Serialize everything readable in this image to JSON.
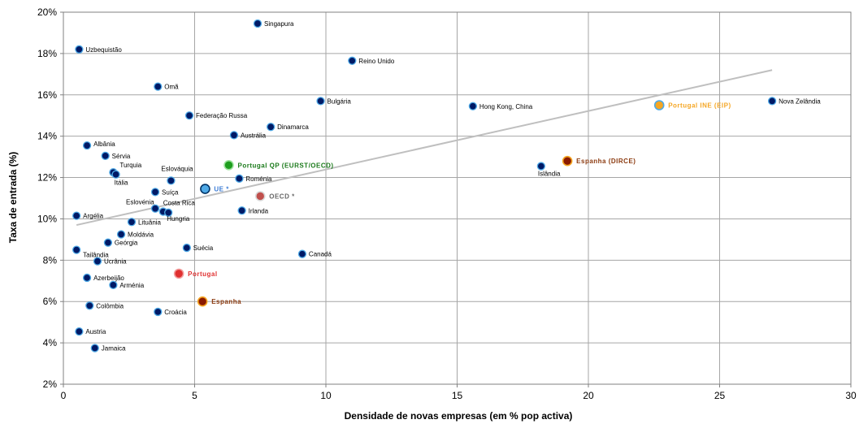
{
  "chart_data": {
    "type": "scatter",
    "title": "",
    "xlabel": "Densidade de novas empresas (em % pop activa)",
    "ylabel": "Taxa de entrada (%)",
    "xlim": [
      0,
      30
    ],
    "ylim": [
      2,
      20
    ],
    "x_ticks": [
      "0",
      "5",
      "10",
      "15",
      "20",
      "25",
      "30"
    ],
    "y_ticks": [
      "2%",
      "4%",
      "6%",
      "8%",
      "10%",
      "12%",
      "14%",
      "16%",
      "18%",
      "20%"
    ],
    "grid": true,
    "colors": {
      "default_point": "#001a66",
      "default_ring": "#4ea9e6",
      "trend": "#bfbfbf",
      "grid": "#a6a6a6",
      "axis": "#808080"
    },
    "trendline": {
      "x": [
        0.5,
        27
      ],
      "y": [
        9.7,
        17.2
      ]
    },
    "points": [
      {
        "label": "Singapura",
        "x": 7.4,
        "y": 19.45
      },
      {
        "label": "Uzbequistão",
        "x": 0.6,
        "y": 18.2
      },
      {
        "label": "Reino Unido",
        "x": 11.0,
        "y": 17.65
      },
      {
        "label": "Omã",
        "x": 3.6,
        "y": 16.4
      },
      {
        "label": "Bulgária",
        "x": 9.8,
        "y": 15.7
      },
      {
        "label": "Hong Kong, China",
        "x": 15.6,
        "y": 15.45
      },
      {
        "label": "Nova Zelândia",
        "x": 27.0,
        "y": 15.7
      },
      {
        "label": "Federação Russa",
        "x": 4.8,
        "y": 15.0
      },
      {
        "label": "Dinamarca",
        "x": 7.9,
        "y": 14.45
      },
      {
        "label": "Austrália",
        "x": 6.5,
        "y": 14.05
      },
      {
        "label": "Albânia",
        "x": 0.9,
        "y": 13.55
      },
      {
        "label": "Sérvia",
        "x": 1.6,
        "y": 13.05
      },
      {
        "label": "Turquia",
        "x": 1.9,
        "y": 12.25
      },
      {
        "label": "Itália",
        "x": 2.0,
        "y": 12.15
      },
      {
        "label": "Eslováquia",
        "x": 4.1,
        "y": 11.85
      },
      {
        "label": "Roménia",
        "x": 6.7,
        "y": 11.95
      },
      {
        "label": "Islândia",
        "x": 18.2,
        "y": 12.55
      },
      {
        "label": "Suíça",
        "x": 3.5,
        "y": 11.3
      },
      {
        "label": "Eslovénia",
        "x": 3.5,
        "y": 10.5
      },
      {
        "label": "Costa Rica",
        "x": 3.8,
        "y": 10.35
      },
      {
        "label": "Hungria",
        "x": 4.0,
        "y": 10.3
      },
      {
        "label": "Irlanda",
        "x": 6.8,
        "y": 10.4
      },
      {
        "label": "Argélia",
        "x": 0.5,
        "y": 10.15
      },
      {
        "label": "Lituânia",
        "x": 2.6,
        "y": 9.85
      },
      {
        "label": "Moldávia",
        "x": 2.2,
        "y": 9.25
      },
      {
        "label": "Geórgia",
        "x": 1.7,
        "y": 8.85
      },
      {
        "label": "Tailândia",
        "x": 0.5,
        "y": 8.5
      },
      {
        "label": "Suécia",
        "x": 4.7,
        "y": 8.6
      },
      {
        "label": "Canadá",
        "x": 9.1,
        "y": 8.3
      },
      {
        "label": "Ucrânia",
        "x": 1.3,
        "y": 7.95
      },
      {
        "label": "Azerbeijão",
        "x": 0.9,
        "y": 7.15
      },
      {
        "label": "Arménia",
        "x": 1.9,
        "y": 6.8
      },
      {
        "label": "Colômbia",
        "x": 1.0,
        "y": 5.8
      },
      {
        "label": "Croácia",
        "x": 3.6,
        "y": 5.5
      },
      {
        "label": "Austria",
        "x": 0.6,
        "y": 4.55
      },
      {
        "label": "Jamaica",
        "x": 1.2,
        "y": 3.75
      }
    ],
    "highlighted": [
      {
        "label": "Portugal INE (EIP)",
        "x": 22.7,
        "y": 15.5,
        "fill": "#f5a623",
        "ring": "#4ea9e6",
        "text_color": "#f5a623"
      },
      {
        "label": "Espanha (DIRCE)",
        "x": 19.2,
        "y": 12.8,
        "fill": "#8b1a00",
        "ring": "#f5a623",
        "text_color": "#8b3a0f"
      },
      {
        "label": "Portugal QP (EURST/OECD)",
        "x": 6.3,
        "y": 12.6,
        "fill": "#1e9e1e",
        "ring": "#9be39b",
        "text_color": "#1a7a1a"
      },
      {
        "label": "UE *",
        "x": 5.4,
        "y": 11.45,
        "fill": "#4ea9e6",
        "ring": "#003366",
        "text_color": "#3a7bd5"
      },
      {
        "label": "OECD *",
        "x": 7.5,
        "y": 11.1,
        "fill": "#c0504d",
        "ring": "#d9d9d9",
        "text_color": "#666666"
      },
      {
        "label": "Portugal",
        "x": 4.4,
        "y": 7.35,
        "fill": "#e03030",
        "ring": "#f2a0a0",
        "text_color": "#e03030"
      },
      {
        "label": "Espanha",
        "x": 5.3,
        "y": 6.0,
        "fill": "#8b1a00",
        "ring": "#f5a623",
        "text_color": "#8b3a0f"
      }
    ]
  }
}
